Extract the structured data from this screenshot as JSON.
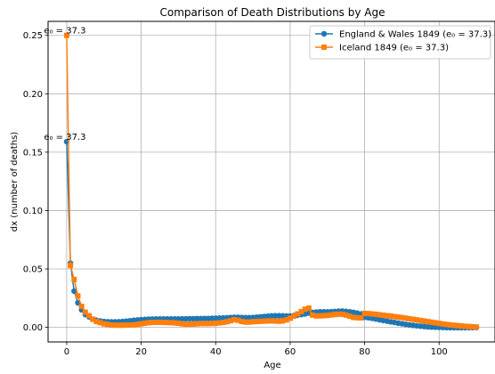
{
  "chart_data": {
    "type": "line",
    "title": "Comparison of Death Distributions by Age",
    "xlabel": "Age",
    "ylabel": "dx (number of deaths)",
    "xlim": [
      -5,
      115
    ],
    "ylim": [
      -0.0125,
      0.262
    ],
    "xticks": [
      0,
      20,
      40,
      60,
      80,
      100
    ],
    "yticks": [
      0.0,
      0.05,
      0.1,
      0.15,
      0.2,
      0.25
    ],
    "ytick_labels": [
      "0.00",
      "0.05",
      "0.10",
      "0.15",
      "0.20",
      "0.25"
    ],
    "grid": true,
    "legend_position": "top-right",
    "series": [
      {
        "name": "England & Wales 1849 (e₀ = 37.3)",
        "color": "#1f77b4",
        "marker": "circle",
        "x": [
          0,
          1,
          2,
          3,
          4,
          5,
          6,
          7,
          8,
          9,
          10,
          11,
          12,
          13,
          14,
          15,
          16,
          17,
          18,
          19,
          20,
          21,
          22,
          23,
          24,
          25,
          26,
          27,
          28,
          29,
          30,
          31,
          32,
          33,
          34,
          35,
          36,
          37,
          38,
          39,
          40,
          41,
          42,
          43,
          44,
          45,
          46,
          47,
          48,
          49,
          50,
          51,
          52,
          53,
          54,
          55,
          56,
          57,
          58,
          59,
          60,
          61,
          62,
          63,
          64,
          65,
          66,
          67,
          68,
          69,
          70,
          71,
          72,
          73,
          74,
          75,
          76,
          77,
          78,
          79,
          80,
          81,
          82,
          83,
          84,
          85,
          86,
          87,
          88,
          89,
          90,
          91,
          92,
          93,
          94,
          95,
          96,
          97,
          98,
          99,
          100,
          101,
          102,
          103,
          104,
          105,
          106,
          107,
          108,
          109,
          110
        ],
        "y": [
          0.159,
          0.055,
          0.031,
          0.021,
          0.015,
          0.011,
          0.009,
          0.007,
          0.006,
          0.0055,
          0.005,
          0.0048,
          0.0047,
          0.0047,
          0.0048,
          0.005,
          0.0053,
          0.0056,
          0.006,
          0.0063,
          0.0066,
          0.0068,
          0.007,
          0.0071,
          0.0072,
          0.0072,
          0.0072,
          0.0072,
          0.0072,
          0.0072,
          0.0072,
          0.0073,
          0.0073,
          0.0074,
          0.0074,
          0.0075,
          0.0075,
          0.0076,
          0.0076,
          0.0077,
          0.0078,
          0.0079,
          0.008,
          0.0082,
          0.0084,
          0.0086,
          0.0086,
          0.0084,
          0.0083,
          0.0083,
          0.0084,
          0.0087,
          0.009,
          0.0093,
          0.0096,
          0.0098,
          0.0099,
          0.0099,
          0.0098,
          0.0097,
          0.0097,
          0.01,
          0.0105,
          0.011,
          0.0115,
          0.0122,
          0.0128,
          0.0131,
          0.0133,
          0.0133,
          0.0133,
          0.0134,
          0.0136,
          0.0138,
          0.0139,
          0.0137,
          0.0133,
          0.0128,
          0.0122,
          0.0115,
          0.0087,
          0.0082,
          0.0077,
          0.0071,
          0.0065,
          0.0059,
          0.0053,
          0.0047,
          0.0042,
          0.0036,
          0.0031,
          0.0026,
          0.0021,
          0.0017,
          0.0013,
          0.001,
          0.0007,
          0.0004,
          0.0002,
          0.0001,
          0.0,
          -0.0001,
          -0.0002,
          -0.0003,
          -0.0003,
          -0.0003,
          -0.0003,
          -0.0003,
          -0.0002,
          -0.0002,
          -0.0001
        ]
      },
      {
        "name": "Iceland 1849 (e₀ = 37.3)",
        "color": "#ff7f0e",
        "marker": "square",
        "x": [
          0,
          1,
          2,
          3,
          4,
          5,
          6,
          7,
          8,
          9,
          10,
          11,
          12,
          13,
          14,
          15,
          16,
          17,
          18,
          19,
          20,
          21,
          22,
          23,
          24,
          25,
          26,
          27,
          28,
          29,
          30,
          31,
          32,
          33,
          34,
          35,
          36,
          37,
          38,
          39,
          40,
          41,
          42,
          43,
          44,
          45,
          46,
          47,
          48,
          49,
          50,
          51,
          52,
          53,
          54,
          55,
          56,
          57,
          58,
          59,
          60,
          61,
          62,
          63,
          64,
          65,
          66,
          67,
          68,
          69,
          70,
          71,
          72,
          73,
          74,
          75,
          76,
          77,
          78,
          79,
          80,
          81,
          82,
          83,
          84,
          85,
          86,
          87,
          88,
          89,
          90,
          91,
          92,
          93,
          94,
          95,
          96,
          97,
          98,
          99,
          100,
          101,
          102,
          103,
          104,
          105,
          106,
          107,
          108,
          109,
          110
        ],
        "y": [
          0.25,
          0.053,
          0.041,
          0.027,
          0.018,
          0.013,
          0.01,
          0.007,
          0.005,
          0.004,
          0.003,
          0.0025,
          0.002,
          0.0018,
          0.0018,
          0.0018,
          0.0019,
          0.002,
          0.0021,
          0.0025,
          0.003,
          0.0035,
          0.004,
          0.0042,
          0.0043,
          0.0043,
          0.0042,
          0.0041,
          0.004,
          0.0038,
          0.0035,
          0.003,
          0.0027,
          0.0027,
          0.0028,
          0.003,
          0.0032,
          0.0032,
          0.0032,
          0.0033,
          0.0035,
          0.0038,
          0.0042,
          0.0048,
          0.0056,
          0.0066,
          0.006,
          0.005,
          0.0045,
          0.0045,
          0.0048,
          0.005,
          0.0052,
          0.0053,
          0.0055,
          0.0055,
          0.0054,
          0.0052,
          0.0055,
          0.0064,
          0.0078,
          0.0095,
          0.0115,
          0.0135,
          0.0155,
          0.0165,
          0.0105,
          0.0098,
          0.0098,
          0.01,
          0.0102,
          0.0106,
          0.011,
          0.0113,
          0.0112,
          0.0105,
          0.0095,
          0.0085,
          0.0082,
          0.0081,
          0.012,
          0.0118,
          0.0115,
          0.0112,
          0.0108,
          0.0104,
          0.01,
          0.0096,
          0.0092,
          0.0088,
          0.0084,
          0.0079,
          0.0074,
          0.0069,
          0.0064,
          0.0059,
          0.0054,
          0.0049,
          0.0044,
          0.0039,
          0.0034,
          0.0029,
          0.0025,
          0.0021,
          0.0018,
          0.0015,
          0.0012,
          0.0009,
          0.0007,
          0.0005,
          0.0003
        ]
      }
    ],
    "annotations": [
      {
        "text": "e₀ = 37.3",
        "x": 0,
        "y": 0.159
      },
      {
        "text": "e₀ = 37.3",
        "x": 0,
        "y": 0.25
      }
    ]
  }
}
